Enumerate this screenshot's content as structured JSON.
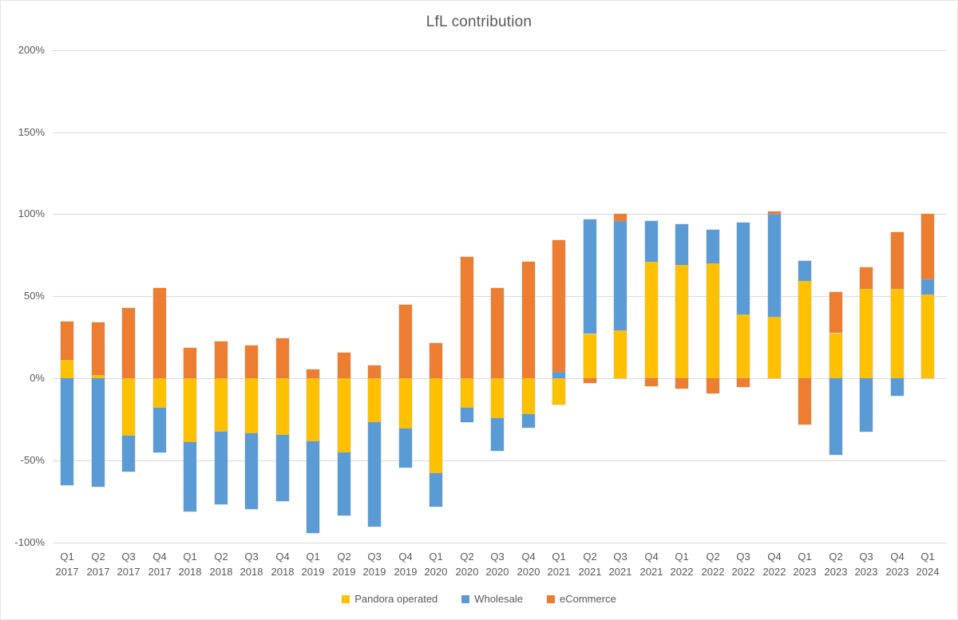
{
  "colors": {
    "background": "#FFFFFF",
    "text": "#595959",
    "gridline": "#D9D9D9",
    "pandora_operated": "#FFC000",
    "wholesale": "#5B9BD5",
    "ecommerce": "#ED7D31"
  },
  "chart_data": {
    "type": "bar",
    "stacked": true,
    "title": "LfL contribution",
    "legend_position": "bottom",
    "grid": true,
    "ylabel": "",
    "xlabel": "",
    "ylim": [
      -100,
      200
    ],
    "unit": "%",
    "y_ticks": [
      {
        "value": 200,
        "label": "200%"
      },
      {
        "value": 150,
        "label": "150%"
      },
      {
        "value": 100,
        "label": "100%"
      },
      {
        "value": 50,
        "label": "50%"
      },
      {
        "value": 0,
        "label": "0%"
      },
      {
        "value": -50,
        "label": "-50%"
      },
      {
        "value": -100,
        "label": "-100%"
      }
    ],
    "categories": [
      {
        "quarter": "Q1",
        "year": "2017"
      },
      {
        "quarter": "Q2",
        "year": "2017"
      },
      {
        "quarter": "Q3",
        "year": "2017"
      },
      {
        "quarter": "Q4",
        "year": "2017"
      },
      {
        "quarter": "Q1",
        "year": "2018"
      },
      {
        "quarter": "Q2",
        "year": "2018"
      },
      {
        "quarter": "Q3",
        "year": "2018"
      },
      {
        "quarter": "Q4",
        "year": "2018"
      },
      {
        "quarter": "Q1",
        "year": "2019"
      },
      {
        "quarter": "Q2",
        "year": "2019"
      },
      {
        "quarter": "Q3",
        "year": "2019"
      },
      {
        "quarter": "Q4",
        "year": "2019"
      },
      {
        "quarter": "Q1",
        "year": "2020"
      },
      {
        "quarter": "Q2",
        "year": "2020"
      },
      {
        "quarter": "Q3",
        "year": "2020"
      },
      {
        "quarter": "Q4",
        "year": "2020"
      },
      {
        "quarter": "Q1",
        "year": "2021"
      },
      {
        "quarter": "Q2",
        "year": "2021"
      },
      {
        "quarter": "Q3",
        "year": "2021"
      },
      {
        "quarter": "Q4",
        "year": "2021"
      },
      {
        "quarter": "Q1",
        "year": "2022"
      },
      {
        "quarter": "Q2",
        "year": "2022"
      },
      {
        "quarter": "Q3",
        "year": "2022"
      },
      {
        "quarter": "Q4",
        "year": "2022"
      },
      {
        "quarter": "Q1",
        "year": "2023"
      },
      {
        "quarter": "Q2",
        "year": "2023"
      },
      {
        "quarter": "Q3",
        "year": "2023"
      },
      {
        "quarter": "Q4",
        "year": "2023"
      },
      {
        "quarter": "Q1",
        "year": "2024"
      }
    ],
    "series": [
      {
        "name": "Pandora operated",
        "color": "#FFC000",
        "values": [
          11,
          2,
          -35,
          -18,
          -39,
          -32.5,
          -33.5,
          -34.5,
          -38.5,
          -45,
          -26.5,
          -30.5,
          -58,
          -18,
          -24.5,
          -22,
          -16,
          27,
          29,
          71,
          69,
          70,
          39,
          37.5,
          59.5,
          27.5,
          54.5,
          54.5,
          51
        ]
      },
      {
        "name": "Wholesale",
        "color": "#5B9BD5",
        "values": [
          -65,
          -66,
          -22,
          -27,
          -42,
          -44.5,
          -46.5,
          -40.5,
          -56,
          -38.5,
          -64,
          -24,
          -20.5,
          -8.5,
          -20,
          -8,
          4,
          70,
          67,
          25,
          25,
          20.5,
          56,
          62.5,
          12,
          -46.5,
          -32.5,
          -10.5,
          9.5
        ]
      },
      {
        "name": "eCommerce",
        "color": "#ED7D31",
        "values": [
          23.5,
          32,
          43,
          55,
          18.5,
          22.5,
          20,
          24.5,
          5.5,
          15.5,
          8,
          45,
          21.5,
          74,
          55,
          71,
          80,
          -3,
          4,
          -5,
          -6.5,
          -9,
          -5.5,
          1.5,
          -28,
          25,
          13,
          34.5,
          39.5
        ]
      }
    ]
  }
}
